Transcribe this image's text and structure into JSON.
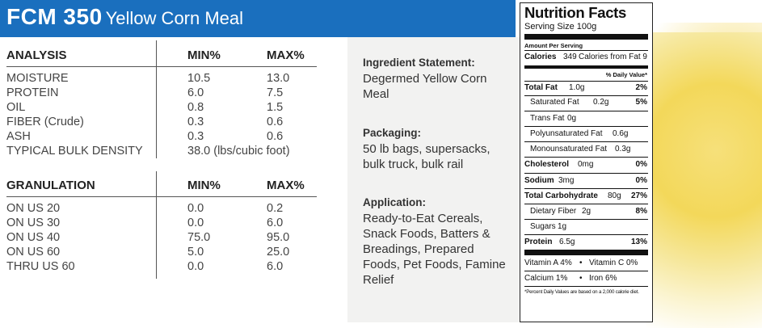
{
  "header": {
    "code": "FCM 350",
    "name": "Yellow Corn Meal"
  },
  "analysis": {
    "headers": [
      "ANALYSIS",
      "MIN%",
      "MAX%"
    ],
    "rows": [
      [
        "MOISTURE",
        "10.5",
        "13.0"
      ],
      [
        "PROTEIN",
        "6.0",
        "7.5"
      ],
      [
        "OIL",
        "0.8",
        "1.5"
      ],
      [
        "FIBER (Crude)",
        "0.3",
        "0.6"
      ],
      [
        "ASH",
        "0.3",
        "0.6"
      ]
    ],
    "density_label": "TYPICAL BULK DENSITY",
    "density_value": "38.0 (lbs/cubic foot)"
  },
  "granulation": {
    "headers": [
      "GRANULATION",
      "MIN%",
      "MAX%"
    ],
    "rows": [
      [
        "ON US 20",
        "0.0",
        "0.2"
      ],
      [
        "ON US 30",
        "0.0",
        "6.0"
      ],
      [
        "ON US 40",
        "75.0",
        "95.0"
      ],
      [
        "ON US 60",
        "5.0",
        "25.0"
      ],
      [
        "THRU US 60",
        "0.0",
        "6.0"
      ]
    ]
  },
  "ingredient": {
    "label": "Ingredient Statement:",
    "text": "Degermed Yellow Corn Meal"
  },
  "packaging": {
    "label": "Packaging:",
    "text": "50 lb bags, supersacks, bulk truck, bulk rail"
  },
  "application": {
    "label": "Application:",
    "text": "Ready-to-Eat Cereals, Snack Foods, Batters & Breadings, Prepared Foods, Pet Foods, Famine Relief"
  },
  "nutrition": {
    "title": "Nutrition Facts",
    "serving": "Serving Size 100g",
    "amount_per": "Amount Per Serving",
    "calories_label": "Calories",
    "calories_value": "349",
    "calories_fat": "Calories from Fat 9",
    "dv_header": "% Daily Value*",
    "total_fat": {
      "label": "Total Fat",
      "value": "1.0g",
      "dv": "2%"
    },
    "saturated_fat": {
      "label": "Saturated Fat",
      "value": "0.2g",
      "dv": "5%"
    },
    "trans_fat": {
      "label": "Trans Fat",
      "value": "0g"
    },
    "poly_fat": {
      "label": "Polyunsaturated Fat",
      "value": "0.6g"
    },
    "mono_fat": {
      "label": "Monounsaturated Fat",
      "value": "0.3g"
    },
    "cholesterol": {
      "label": "Cholesterol",
      "value": "0mg",
      "dv": "0%"
    },
    "sodium": {
      "label": "Sodium",
      "value": "3mg",
      "dv": "0%"
    },
    "carbs": {
      "label": "Total Carbohydrate",
      "value": "80g",
      "dv": "27%"
    },
    "fiber": {
      "label": "Dietary Fiber",
      "value": "2g",
      "dv": "8%"
    },
    "sugars": {
      "label": "Sugars",
      "value": "1g"
    },
    "protein": {
      "label": "Protein",
      "value": "6.5g",
      "dv": "13%"
    },
    "vit_a": "Vitamin A 4%",
    "vit_c": "Vitamin C 0%",
    "calcium": "Calcium 1%",
    "iron": "Iron 6%",
    "bullet": "•",
    "footnote": "*Percent Daily Values are based on a 2,000 calorie diet."
  },
  "colors": {
    "header_bg": "#1a6fbe",
    "panel_bg": "#f2f2f1"
  }
}
